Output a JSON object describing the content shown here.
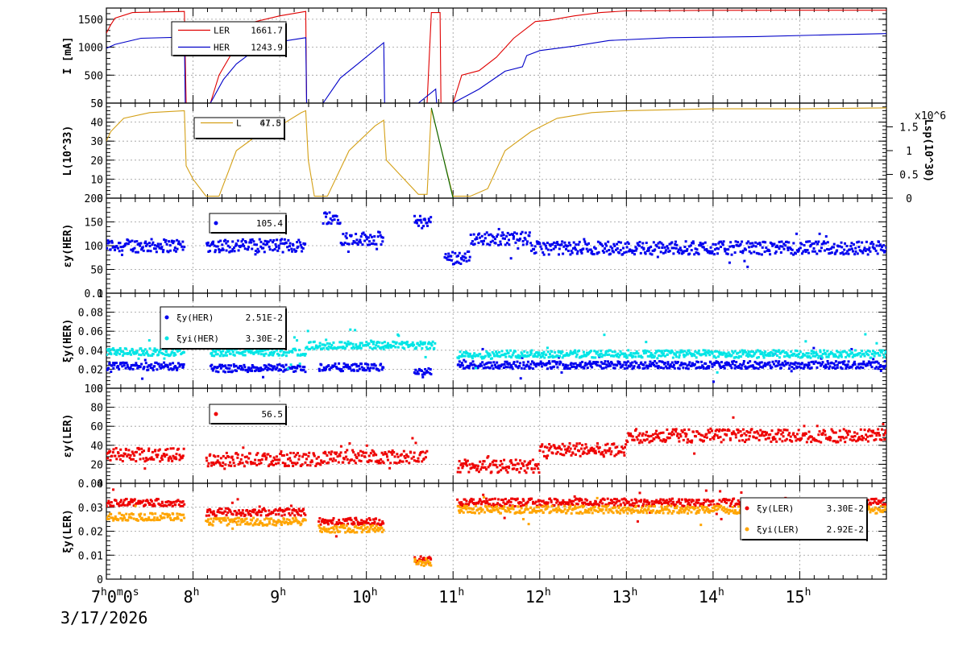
{
  "chart_data": [
    {
      "type": "line",
      "panel": "beam-current",
      "ylabel": "I [mA]",
      "ylim": [
        0,
        1700
      ],
      "yticks": [
        0,
        500,
        1000,
        1500
      ],
      "series": [
        {
          "name": "LER",
          "legend_value": "1661.7",
          "color": "#e00000",
          "points": [
            [
              7.0,
              1250
            ],
            [
              7.05,
              1400
            ],
            [
              7.1,
              1520
            ],
            [
              7.3,
              1620
            ],
            [
              7.9,
              1640
            ],
            [
              7.92,
              0
            ],
            [
              8.2,
              0
            ],
            [
              8.3,
              500
            ],
            [
              8.45,
              900
            ],
            [
              8.7,
              1450
            ],
            [
              9.0,
              1560
            ],
            [
              9.3,
              1640
            ],
            [
              9.31,
              0
            ],
            [
              10.15,
              0
            ],
            [
              10.2,
              0
            ],
            [
              10.3,
              0
            ],
            [
              10.5,
              0
            ],
            [
              10.6,
              0
            ],
            [
              10.7,
              0
            ],
            [
              10.75,
              1620
            ],
            [
              10.85,
              1620
            ],
            [
              10.86,
              0
            ],
            [
              11.0,
              0
            ],
            [
              11.1,
              500
            ],
            [
              11.3,
              580
            ],
            [
              11.5,
              820
            ],
            [
              11.7,
              1160
            ],
            [
              11.95,
              1460
            ],
            [
              12.1,
              1480
            ],
            [
              12.4,
              1560
            ],
            [
              12.7,
              1620
            ],
            [
              13.0,
              1650
            ],
            [
              14.0,
              1660
            ],
            [
              15.0,
              1661
            ],
            [
              16.0,
              1661.7
            ]
          ]
        },
        {
          "name": "HER",
          "legend_value": "1243.9",
          "color": "#0000c8",
          "points": [
            [
              7.0,
              980
            ],
            [
              7.1,
              1050
            ],
            [
              7.4,
              1160
            ],
            [
              7.9,
              1180
            ],
            [
              7.91,
              0
            ],
            [
              8.2,
              0
            ],
            [
              8.35,
              420
            ],
            [
              8.5,
              700
            ],
            [
              8.8,
              1050
            ],
            [
              9.3,
              1170
            ],
            [
              9.31,
              0
            ],
            [
              9.5,
              0
            ],
            [
              9.7,
              450
            ],
            [
              9.9,
              700
            ],
            [
              10.2,
              1080
            ],
            [
              10.21,
              0
            ],
            [
              10.6,
              0
            ],
            [
              10.8,
              250
            ],
            [
              10.81,
              0
            ],
            [
              11.0,
              0
            ],
            [
              11.3,
              250
            ],
            [
              11.6,
              570
            ],
            [
              11.8,
              650
            ],
            [
              11.85,
              850
            ],
            [
              12.0,
              940
            ],
            [
              12.4,
              1020
            ],
            [
              12.8,
              1120
            ],
            [
              13.5,
              1170
            ],
            [
              14.5,
              1190
            ],
            [
              15.3,
              1220
            ],
            [
              16.0,
              1243.9
            ]
          ]
        }
      ]
    },
    {
      "type": "line",
      "panel": "luminosity",
      "ylabel": "L(10^33)",
      "y2label": "Lsp(10^30)",
      "y2exponent": "x10^6",
      "ylim": [
        0,
        50
      ],
      "yticks": [
        0,
        10,
        20,
        30,
        40,
        50
      ],
      "y2lim": [
        0,
        2
      ],
      "y2ticks": [
        "0",
        "0.5",
        "1",
        "1.5"
      ],
      "series": [
        {
          "name": "L",
          "legend_value": "47.5",
          "legend_value_overlay": "61.8",
          "color": "#d4a017",
          "points": [
            [
              7.0,
              30
            ],
            [
              7.05,
              35
            ],
            [
              7.2,
              42
            ],
            [
              7.5,
              45
            ],
            [
              7.9,
              46
            ],
            [
              7.92,
              17
            ],
            [
              8.0,
              10
            ],
            [
              8.15,
              1
            ],
            [
              8.3,
              1
            ],
            [
              8.5,
              25
            ],
            [
              8.8,
              35
            ],
            [
              9.0,
              38
            ],
            [
              9.25,
              45
            ],
            [
              9.3,
              46
            ],
            [
              9.33,
              20
            ],
            [
              9.4,
              1
            ],
            [
              9.55,
              1
            ],
            [
              9.8,
              25
            ],
            [
              10.1,
              38
            ],
            [
              10.2,
              41
            ],
            [
              10.23,
              20
            ],
            [
              10.6,
              2
            ],
            [
              10.7,
              2
            ],
            [
              10.75,
              47
            ],
            [
              11.0,
              1
            ],
            [
              11.2,
              1
            ],
            [
              11.4,
              5
            ],
            [
              11.6,
              25
            ],
            [
              11.9,
              35
            ],
            [
              12.2,
              42
            ],
            [
              12.6,
              45
            ],
            [
              13.0,
              46
            ],
            [
              14.0,
              47
            ],
            [
              15.0,
              47
            ],
            [
              16.0,
              47.5
            ]
          ]
        },
        {
          "name": "Lsp",
          "color": "#006400",
          "points": [
            [
              10.75,
              1.9
            ],
            [
              11.0,
              0
            ]
          ]
        }
      ]
    },
    {
      "type": "scatter",
      "panel": "emittance-her",
      "ylabel": "εy(HER)",
      "ylim": [
        0,
        200
      ],
      "yticks": [
        0,
        50,
        100,
        150,
        200
      ],
      "series": [
        {
          "name": "εy(HER)",
          "legend_value": "105.4",
          "color": "#0000ee",
          "segments": [
            [
              7.0,
              7.9,
              100
            ],
            [
              8.15,
              9.3,
              100
            ],
            [
              9.5,
              9.7,
              160
            ],
            [
              9.7,
              10.2,
              115
            ],
            [
              10.55,
              10.75,
              150
            ],
            [
              10.9,
              11.2,
              75
            ],
            [
              11.2,
              11.9,
              115
            ],
            [
              11.9,
              16.0,
              95
            ]
          ]
        }
      ]
    },
    {
      "type": "scatter",
      "panel": "tune-shift-her",
      "ylabel": "ξy(HER)",
      "ylim": [
        0,
        0.1
      ],
      "yticks": [
        "0",
        "0.02",
        "0.04",
        "0.06",
        "0.08",
        "0.1"
      ],
      "series": [
        {
          "name": "ξy(HER)",
          "legend_value": "2.51E-2",
          "color": "#0000ee",
          "segments": [
            [
              7.0,
              7.9,
              0.023
            ],
            [
              8.2,
              9.3,
              0.021
            ],
            [
              9.45,
              10.2,
              0.022
            ],
            [
              10.55,
              10.75,
              0.017
            ],
            [
              11.05,
              16.0,
              0.0245
            ]
          ]
        },
        {
          "name": "ξyi(HER)",
          "legend_value": "3.30E-2",
          "color": "#00e5e5",
          "segments": [
            [
              7.0,
              7.9,
              0.038
            ],
            [
              8.2,
              9.3,
              0.038
            ],
            [
              9.3,
              10.8,
              0.045
            ],
            [
              11.05,
              11.5,
              0.035
            ],
            [
              11.5,
              16.0,
              0.036
            ]
          ]
        }
      ]
    },
    {
      "type": "scatter",
      "panel": "emittance-ler",
      "ylabel": "εy(LER)",
      "ylim": [
        0,
        100
      ],
      "yticks": [
        0,
        20,
        40,
        60,
        80,
        100
      ],
      "series": [
        {
          "name": "εy(LER)",
          "legend_value": "56.5",
          "color": "#ee0000",
          "segments": [
            [
              7.0,
              7.9,
              30
            ],
            [
              8.15,
              9.5,
              25
            ],
            [
              9.5,
              10.7,
              28
            ],
            [
              11.05,
              12.0,
              18
            ],
            [
              12.0,
              13.0,
              35
            ],
            [
              13.0,
              16.0,
              50
            ]
          ]
        }
      ]
    },
    {
      "type": "scatter",
      "panel": "tune-shift-ler",
      "ylabel": "ξy(LER)",
      "ylim": [
        0,
        0.04
      ],
      "yticks": [
        "0",
        "0.01",
        "0.02",
        "0.03"
      ],
      "top_tick": "0.04",
      "series": [
        {
          "name": "ξy(LER)",
          "legend_value": "3.30E-2",
          "color": "#ee0000",
          "segments": [
            [
              7.0,
              7.9,
              0.032
            ],
            [
              8.15,
              9.3,
              0.028
            ],
            [
              9.45,
              10.2,
              0.024
            ],
            [
              10.55,
              10.75,
              0.008
            ],
            [
              11.05,
              16.0,
              0.032
            ]
          ]
        },
        {
          "name": "ξyi(LER)",
          "legend_value": "2.92E-2",
          "color": "#ffa500",
          "segments": [
            [
              7.0,
              7.9,
              0.026
            ],
            [
              8.15,
              9.3,
              0.024
            ],
            [
              9.45,
              10.2,
              0.021
            ],
            [
              10.55,
              10.75,
              0.007
            ],
            [
              11.05,
              16.0,
              0.029
            ]
          ]
        }
      ]
    }
  ],
  "x_axis": {
    "xlim": [
      7.0,
      16.0
    ],
    "ticks": [
      {
        "v": 7,
        "label": "7",
        "sup": "h",
        "extra": "0",
        "extra_sup": "m",
        "extra2": "0",
        "extra2_sup": "s"
      },
      {
        "v": 8,
        "label": "8",
        "sup": "h"
      },
      {
        "v": 9,
        "label": "9",
        "sup": "h"
      },
      {
        "v": 10,
        "label": "10",
        "sup": "h"
      },
      {
        "v": 11,
        "label": "11",
        "sup": "h"
      },
      {
        "v": 12,
        "label": "12",
        "sup": "h"
      },
      {
        "v": 13,
        "label": "13",
        "sup": "h"
      },
      {
        "v": 14,
        "label": "14",
        "sup": "h"
      },
      {
        "v": 15,
        "label": "15",
        "sup": "h"
      }
    ],
    "date": "3/17/2026"
  }
}
